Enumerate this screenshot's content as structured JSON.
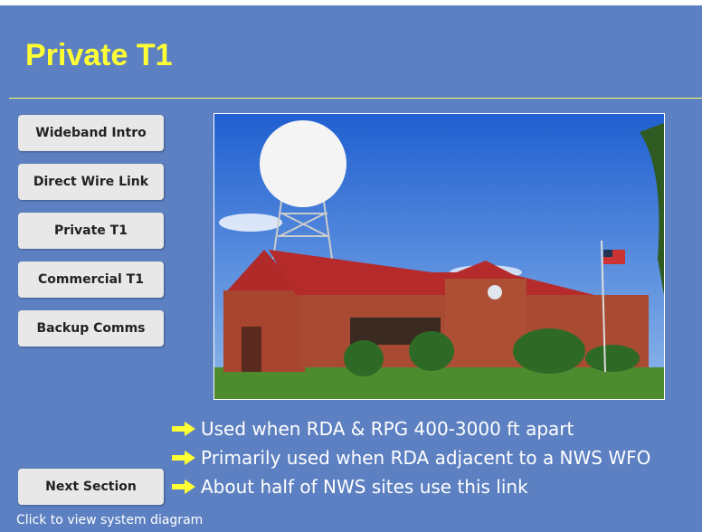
{
  "header": {
    "title": "Private T1"
  },
  "nav": {
    "buttons": [
      "Wideband Intro",
      "Direct Wire Link",
      "Private T1",
      "Commercial T1",
      "Backup Comms"
    ]
  },
  "bullets": [
    "Used when RDA & RPG 400-3000 ft apart",
    "Primarily used when RDA adjacent to a NWS WFO",
    "About half of NWS sites use this link"
  ],
  "next_button": "Next Section",
  "footer_hint": "Click to view system diagram"
}
